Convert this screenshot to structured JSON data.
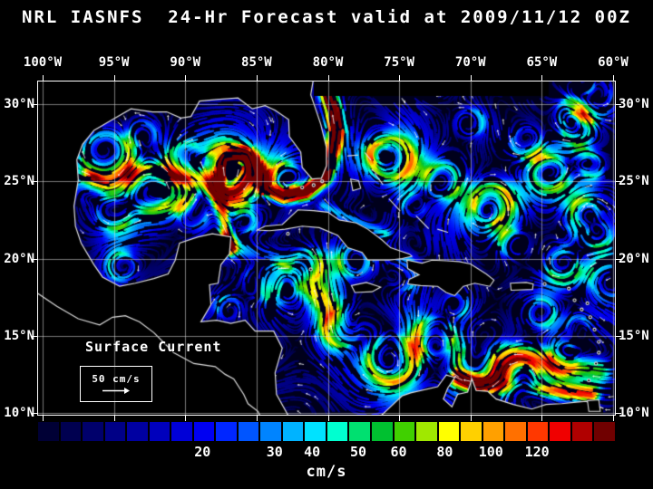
{
  "title": "NRL IASNFS  24-Hr Forecast valid at 2009/11/12 00Z",
  "map": {
    "lon_labels": [
      "100°W",
      "95°W",
      "90°W",
      "85°W",
      "80°W",
      "75°W",
      "70°W",
      "65°W",
      "60°W"
    ],
    "lat_labels": [
      "30°N",
      "25°N",
      "20°N",
      "15°N",
      "10°N"
    ],
    "annotation": "Surface Current",
    "scale_label": "50 cm/s"
  },
  "colorbar": {
    "unit": "cm/s",
    "ticks": [
      {
        "label": "20",
        "pos": 0.285
      },
      {
        "label": "30",
        "pos": 0.41
      },
      {
        "label": "40",
        "pos": 0.475
      },
      {
        "label": "50",
        "pos": 0.555
      },
      {
        "label": "60",
        "pos": 0.625
      },
      {
        "label": "80",
        "pos": 0.705
      },
      {
        "label": "100",
        "pos": 0.785
      },
      {
        "label": "120",
        "pos": 0.865
      }
    ],
    "colors": [
      "#000035",
      "#000050",
      "#00006b",
      "#000086",
      "#0000a1",
      "#0000bc",
      "#0000d7",
      "#0000f2",
      "#0026ff",
      "#0055ff",
      "#0084ff",
      "#00b3ff",
      "#00e2ff",
      "#00ffd0",
      "#00e070",
      "#00c030",
      "#40d000",
      "#a0e800",
      "#ffff00",
      "#ffd000",
      "#ffa000",
      "#ff7000",
      "#ff3800",
      "#f00000",
      "#b00000",
      "#700000"
    ]
  }
}
